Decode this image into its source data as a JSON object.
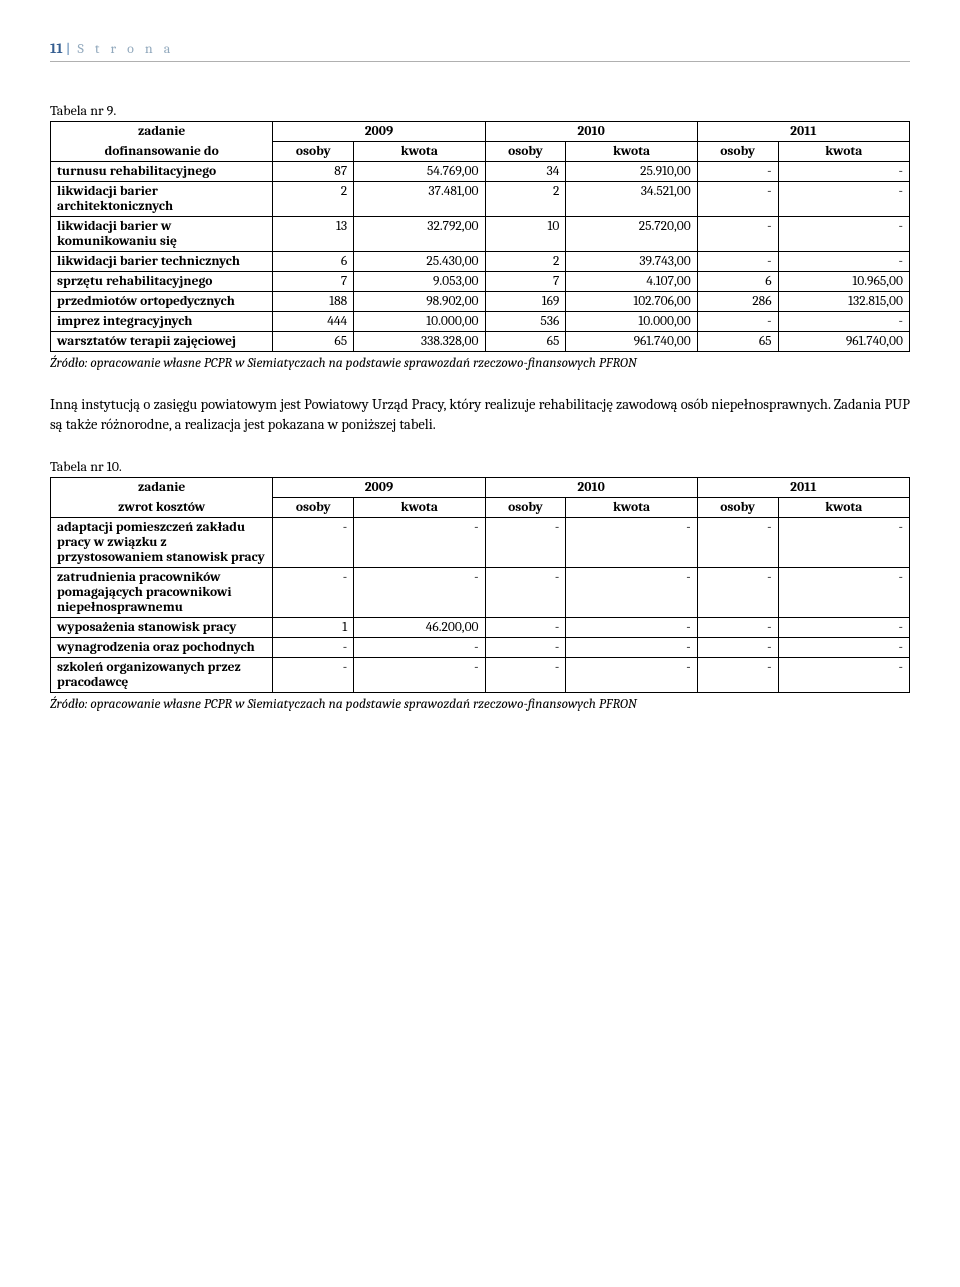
{
  "header": {
    "page_num": "11",
    "label": "S t r o n a"
  },
  "table9": {
    "caption": "Tabela nr 9.",
    "head": {
      "col1": "zadanie dofinansowanie do",
      "years": [
        "2009",
        "2010",
        "2011"
      ],
      "sub": [
        "osoby",
        "kwota"
      ]
    },
    "rows": [
      {
        "label": "turnusu rehabilitacyjnego",
        "c": [
          "87",
          "54.769,00",
          "34",
          "25.910,00",
          "-",
          "-"
        ]
      },
      {
        "label": "likwidacji barier architektonicznych",
        "c": [
          "2",
          "37.481,00",
          "2",
          "34.521,00",
          "-",
          "-"
        ]
      },
      {
        "label": "likwidacji barier w komunikowaniu się",
        "c": [
          "13",
          "32.792,00",
          "10",
          "25.720,00",
          "-",
          "-"
        ]
      },
      {
        "label": "likwidacji barier technicznych",
        "c": [
          "6",
          "25.430,00",
          "2",
          "39.743,00",
          "-",
          "-"
        ]
      },
      {
        "label": "sprzętu rehabilitacyjnego",
        "c": [
          "7",
          "9.053,00",
          "7",
          "4.107,00",
          "6",
          "10.965,00"
        ]
      },
      {
        "label": "przedmiotów ortopedycznych",
        "c": [
          "188",
          "98.902,00",
          "169",
          "102.706,00",
          "286",
          "132.815,00"
        ]
      },
      {
        "label": "imprez integracyjnych",
        "c": [
          "444",
          "10.000,00",
          "536",
          "10.000,00",
          "-",
          "-"
        ]
      },
      {
        "label": "warsztatów terapii zajęciowej",
        "c": [
          "65",
          "338.328,00",
          "65",
          "961.740,00",
          "65",
          "961.740,00"
        ]
      }
    ],
    "source": "Źródło: opracowanie własne PCPR w Siemiatyczach na podstawie sprawozdań rzeczowo-finansowych PFRON"
  },
  "paragraph": "Inną instytucją o zasięgu powiatowym jest Powiatowy Urząd Pracy, który realizuje rehabilitację zawodową osób niepełnosprawnych. Zadania PUP są także różnorodne, a realizacja jest pokazana w poniższej tabeli.",
  "table10": {
    "caption": "Tabela nr 10.",
    "head": {
      "col1": "zadanie zwrot kosztów",
      "years": [
        "2009",
        "2010",
        "2011"
      ],
      "sub": [
        "osoby",
        "kwota"
      ]
    },
    "rows": [
      {
        "label": "adaptacji pomieszczeń zakładu pracy w związku z przystosowaniem stanowisk pracy",
        "c": [
          "-",
          "-",
          "-",
          "-",
          "-",
          "-"
        ]
      },
      {
        "label": "zatrudnienia pracowników pomagających pracownikowi niepełnosprawnemu",
        "c": [
          "-",
          "-",
          "-",
          "-",
          "-",
          "-"
        ]
      },
      {
        "label": "wyposażenia stanowisk pracy",
        "c": [
          "1",
          "46.200,00",
          "-",
          "-",
          "-",
          "-"
        ]
      },
      {
        "label": "wynagrodzenia oraz pochodnych",
        "c": [
          "-",
          "-",
          "-",
          "-",
          "-",
          "-"
        ]
      },
      {
        "label": "szkoleń organizowanych przez pracodawcę",
        "c": [
          "-",
          "-",
          "-",
          "-",
          "-",
          "-"
        ]
      }
    ],
    "source": "Źródło: opracowanie własne PCPR w Siemiatyczach na podstawie sprawozdań rzeczowo-finansowych PFRON"
  },
  "col_widths": {
    "osoby": "8%",
    "kwota": "13%"
  }
}
